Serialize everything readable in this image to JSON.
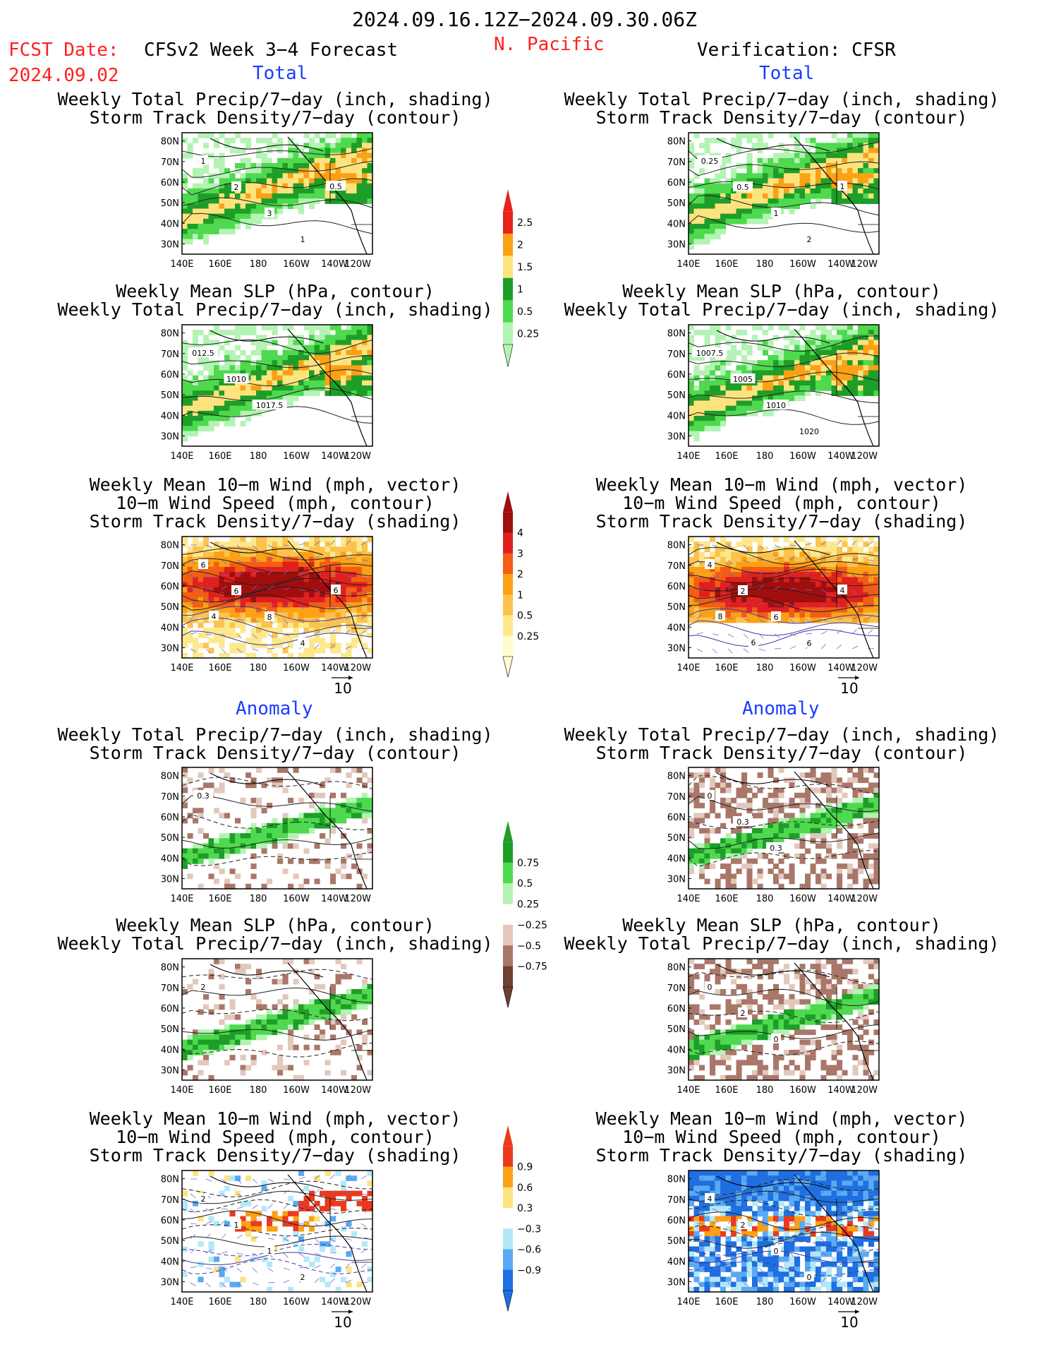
{
  "header": {
    "date_range": "2024.09.16.12Z−2024.09.30.06Z",
    "fcst_label": "FCST Date:",
    "fcst_date": "2024.09.02",
    "model_title": "CFSv2 Week 3−4 Forecast",
    "region": "N. Pacific",
    "verification": "Verification: CFSR"
  },
  "sections": {
    "total_left": "Total",
    "total_right": "Total",
    "anomaly_left": "Anomaly",
    "anomaly_right": "Anomaly"
  },
  "panel_titles": {
    "precip_storm": [
      "Weekly Total Precip/7−day (inch, shading)",
      "Storm Track Density/7−day (contour)"
    ],
    "slp_precip": [
      "Weekly Mean SLP (hPa, contour)",
      "Weekly Total Precip/7−day (inch, shading)"
    ],
    "wind_storm": [
      "Weekly Mean 10−m Wind (mph, vector)",
      "10−m Wind Speed (mph, contour)",
      "Storm Track Density/7−day (shading)"
    ]
  },
  "axes": {
    "lat_ticks": [
      "80N",
      "70N",
      "60N",
      "50N",
      "40N",
      "30N"
    ],
    "lon_ticks": [
      "140E",
      "160E",
      "180",
      "160W",
      "140W",
      "120W"
    ],
    "lat_range": [
      25,
      84
    ],
    "lon_range": [
      140,
      240
    ]
  },
  "vector_ref": "10",
  "colorbars": {
    "precip_total": {
      "labels": [
        "2.5",
        "2",
        "1.5",
        "1",
        "0.5",
        "0.25"
      ],
      "colors": [
        "#e8231c",
        "#fca016",
        "#fde37e",
        "#1e9e28",
        "#4fd94f",
        "#b3f3b3"
      ]
    },
    "storm_total": {
      "labels": [
        "4",
        "3",
        "2",
        "1",
        "0.5",
        "0.25"
      ],
      "colors": [
        "#a10e0e",
        "#e02020",
        "#f35d14",
        "#fca016",
        "#fcc24d",
        "#fde88c",
        "#fffbd0"
      ]
    },
    "precip_anom": {
      "labels": [
        "0.75",
        "0.5",
        "0.25",
        "−0.25",
        "−0.5",
        "−0.75"
      ],
      "colors": [
        "#1e9e28",
        "#4fd94f",
        "#b3f3b3",
        "#ffffff",
        "#e2c8bc",
        "#a9776a",
        "#6e4133"
      ]
    },
    "storm_anom": {
      "labels": [
        "0.9",
        "0.6",
        "0.3",
        "−0.3",
        "−0.6",
        "−0.9"
      ],
      "colors": [
        "#ea3a1e",
        "#fca016",
        "#fde37e",
        "#ffffff",
        "#b4e8f8",
        "#5aaaf2",
        "#1e6fe0"
      ]
    }
  },
  "chart_data": [
    {
      "panel": "forecast-total-precip-storm",
      "type": "heatmap",
      "contour_labels": [
        "1",
        "2",
        "3",
        "1",
        "0.5"
      ]
    },
    {
      "panel": "verification-total-precip-storm",
      "type": "heatmap",
      "contour_labels": [
        "0.25",
        "0.5",
        "1",
        "2",
        "1"
      ]
    },
    {
      "panel": "forecast-total-slp-precip",
      "type": "heatmap",
      "contour_labels": [
        "012.5",
        "1010",
        "1017.5"
      ]
    },
    {
      "panel": "verification-total-slp-precip",
      "type": "heatmap",
      "contour_labels": [
        "1007.5",
        "1005",
        "1010",
        "1020"
      ]
    },
    {
      "panel": "forecast-total-wind-storm",
      "type": "heatmap",
      "contour_labels": [
        "6",
        "6",
        "8",
        "4",
        "6",
        "4"
      ]
    },
    {
      "panel": "verification-total-wind-storm",
      "type": "heatmap",
      "contour_labels": [
        "4",
        "2",
        "6",
        "6",
        "4",
        "8",
        "6"
      ]
    },
    {
      "panel": "forecast-anom-precip-storm",
      "type": "heatmap",
      "contour_labels": [
        "0.3"
      ]
    },
    {
      "panel": "verification-anom-precip-storm",
      "type": "heatmap",
      "contour_labels": [
        "0",
        "0.3",
        "0.3"
      ]
    },
    {
      "panel": "forecast-anom-slp-precip",
      "type": "heatmap",
      "contour_labels": [
        "2"
      ]
    },
    {
      "panel": "verification-anom-slp-precip",
      "type": "heatmap",
      "contour_labels": [
        "0",
        "2",
        "0"
      ]
    },
    {
      "panel": "forecast-anom-wind-storm",
      "type": "heatmap",
      "contour_labels": [
        "2",
        "1",
        "1",
        "2"
      ]
    },
    {
      "panel": "verification-anom-wind-storm",
      "type": "heatmap",
      "contour_labels": [
        "4",
        "2",
        "0",
        "0"
      ]
    }
  ]
}
